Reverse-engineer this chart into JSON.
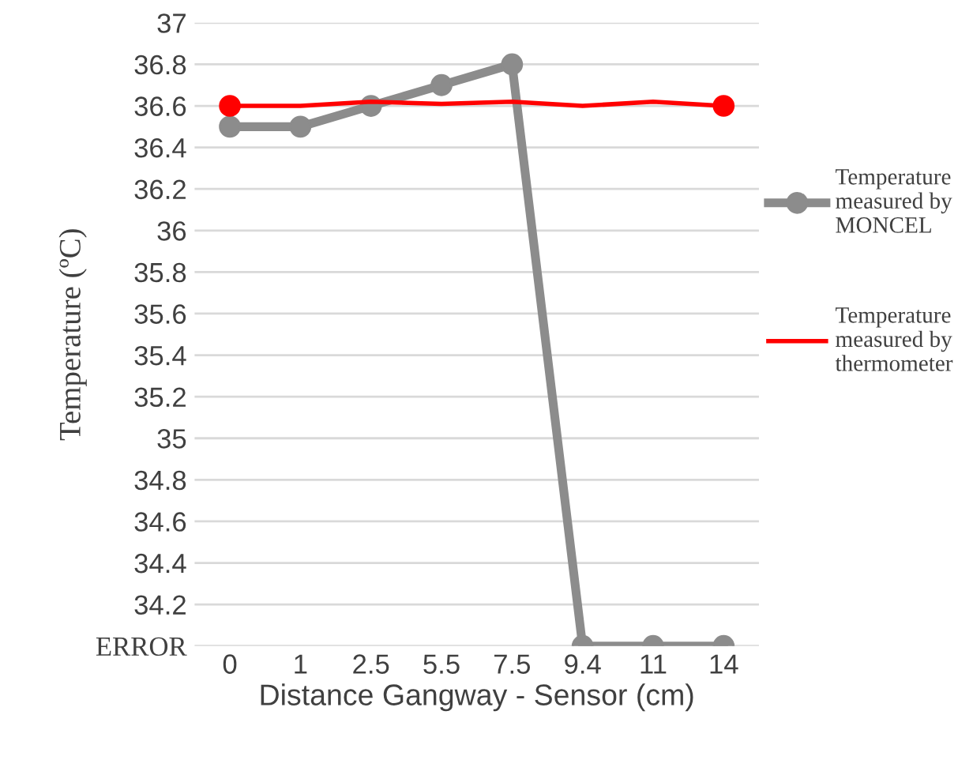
{
  "chart_data": {
    "type": "line",
    "xlabel": "Distance Gangway - Sensor (cm)",
    "ylabel": "Temperature (ºC)",
    "categories": [
      "0",
      "1",
      "2.5",
      "5.5",
      "7.5",
      "9.4",
      "11",
      "14"
    ],
    "series": [
      {
        "name": "Temperature measured by MONCEL",
        "color": "#8c8c8c",
        "marker": "circle",
        "values": [
          36.5,
          36.5,
          36.6,
          36.7,
          36.8,
          34,
          34,
          34
        ]
      },
      {
        "name": "Temperature measured by thermometer",
        "color": "#ff0000",
        "marker": "none",
        "values": [
          36.6,
          36.6,
          36.62,
          36.61,
          36.62,
          36.6,
          36.62,
          36.6
        ]
      },
      {
        "type": "scatter",
        "color": "#ff0000",
        "marker": "circle",
        "values": [
          36.6,
          null,
          null,
          null,
          null,
          null,
          null,
          36.6
        ]
      }
    ],
    "ylim": [
      34,
      37
    ],
    "yticks": [
      {
        "value": 34,
        "label": "ERROR"
      },
      34.2,
      34.4,
      34.6,
      34.8,
      35,
      35.2,
      35.4,
      35.6,
      35.8,
      36,
      36.2,
      36.4,
      36.6,
      36.8,
      37
    ],
    "grid": "y",
    "legend": "right"
  }
}
